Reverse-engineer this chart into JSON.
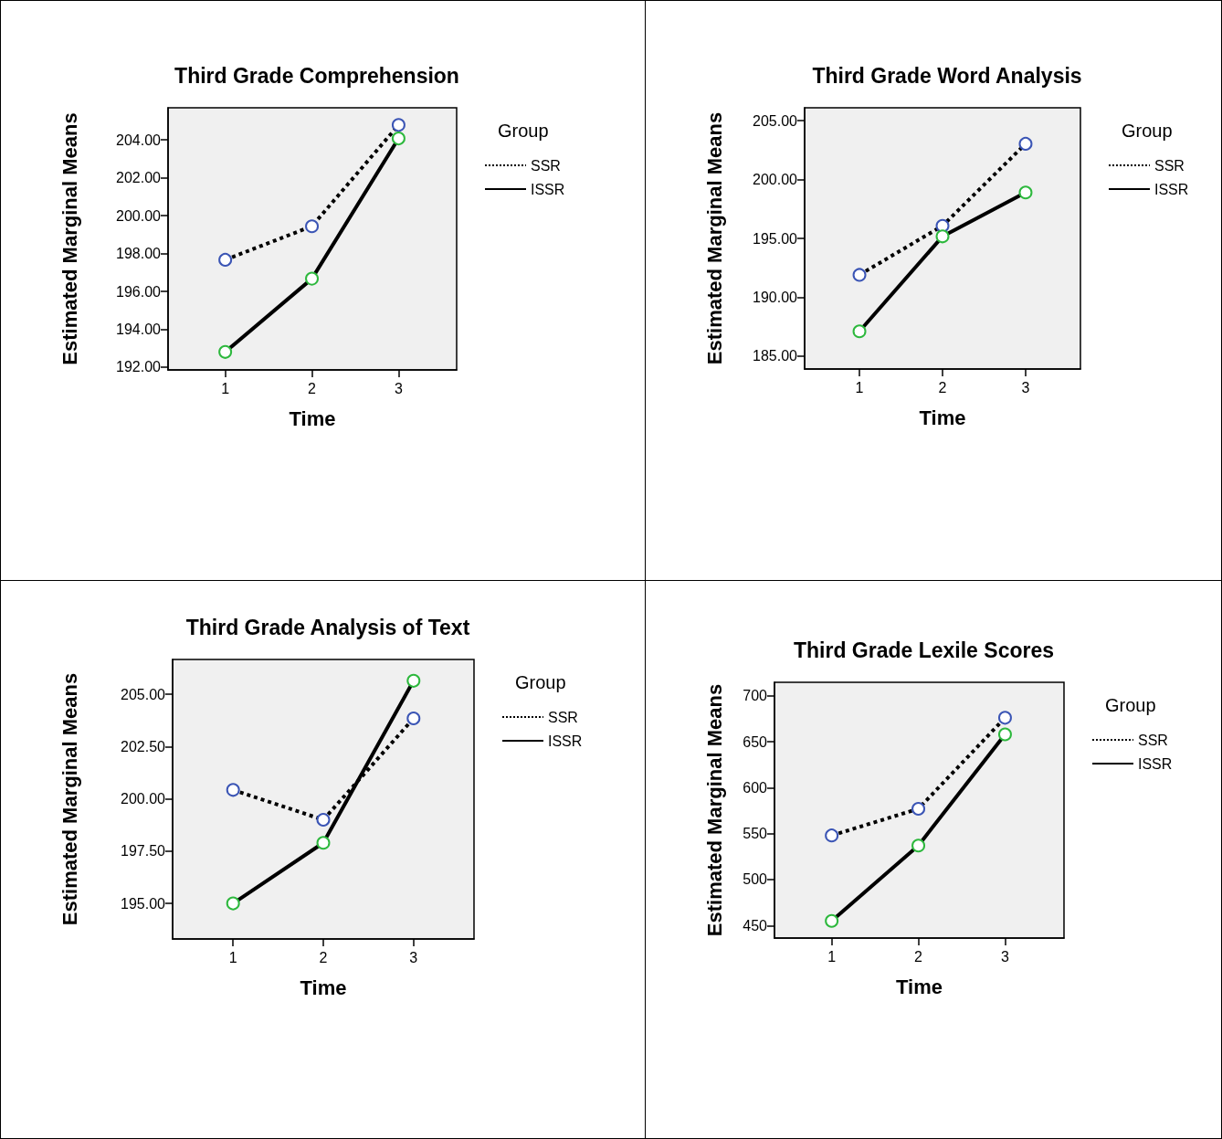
{
  "chart_data": [
    {
      "type": "line",
      "title": "Third Grade Comprehension",
      "xlabel": "Time",
      "ylabel": "Estimated Marginal Means",
      "legend_title": "Group",
      "x": [
        1,
        2,
        3
      ],
      "xlim": [
        0.34,
        3.67
      ],
      "xticks": [
        1,
        2,
        3
      ],
      "ylim": [
        191.85,
        205.7
      ],
      "yticks": [
        {
          "value": 192,
          "label": "192.00"
        },
        {
          "value": 194,
          "label": "194.00"
        },
        {
          "value": 196,
          "label": "196.00"
        },
        {
          "value": 198,
          "label": "198.00"
        },
        {
          "value": 200,
          "label": "200.00"
        },
        {
          "value": 202,
          "label": "202.00"
        },
        {
          "value": 204,
          "label": "204.00"
        }
      ],
      "grid": false,
      "legend": "right",
      "marker": "circle",
      "series": [
        {
          "name": "SSR",
          "color": "#000000",
          "colors": [
            "#3b55b5",
            "#3b55b5",
            "#3b55b5"
          ],
          "line_style": "dotted",
          "values": [
            197.67,
            199.44,
            204.79
          ]
        },
        {
          "name": "ISSR",
          "color": "#000000",
          "colors": [
            "#2db83d",
            "#2db83d",
            "#2db83d"
          ],
          "line_style": "solid",
          "values": [
            192.8,
            196.67,
            204.08
          ]
        }
      ]
    },
    {
      "type": "line",
      "title": "Third Grade Word Analysis",
      "xlabel": "Time",
      "ylabel": "Estimated Marginal Means",
      "legend_title": "Group",
      "x": [
        1,
        2,
        3
      ],
      "xlim": [
        0.34,
        3.66
      ],
      "xticks": [
        1,
        2,
        3
      ],
      "ylim": [
        183.9,
        206.1
      ],
      "yticks": [
        {
          "value": 185,
          "label": "185.00"
        },
        {
          "value": 190,
          "label": "190.00"
        },
        {
          "value": 195,
          "label": "195.00"
        },
        {
          "value": 200,
          "label": "200.00"
        },
        {
          "value": 205,
          "label": "205.00"
        }
      ],
      "grid": false,
      "legend": "right",
      "marker": "circle",
      "series": [
        {
          "name": "SSR",
          "color": "#000000",
          "colors": [
            "#3b55b5",
            "#3b55b5",
            "#3b55b5"
          ],
          "line_style": "dotted",
          "values": [
            191.9,
            196.07,
            203.04
          ]
        },
        {
          "name": "ISSR",
          "color": "#000000",
          "colors": [
            "#2db83d",
            "#2db83d",
            "#2db83d"
          ],
          "line_style": "solid",
          "values": [
            187.1,
            195.17,
            198.9
          ]
        }
      ]
    },
    {
      "type": "line",
      "title": "Third Grade Analysis of Text",
      "xlabel": "Time",
      "ylabel": "Estimated Marginal Means",
      "legend_title": "Group",
      "x": [
        1,
        2,
        3
      ],
      "xlim": [
        0.33,
        3.67
      ],
      "xticks": [
        1,
        2,
        3
      ],
      "ylim": [
        193.3,
        206.67
      ],
      "yticks": [
        {
          "value": 195,
          "label": "195.00"
        },
        {
          "value": 197.5,
          "label": "197.50"
        },
        {
          "value": 200,
          "label": "200.00"
        },
        {
          "value": 202.5,
          "label": "202.50"
        },
        {
          "value": 205,
          "label": "205.00"
        }
      ],
      "grid": false,
      "legend": "right",
      "marker": "circle",
      "series": [
        {
          "name": "SSR",
          "color": "#000000",
          "colors": [
            "#3b55b5",
            "#3b55b5",
            "#3b55b5"
          ],
          "line_style": "dotted",
          "values": [
            200.43,
            199.0,
            203.85
          ]
        },
        {
          "name": "ISSR",
          "color": "#000000",
          "colors": [
            "#2db83d",
            "#2db83d",
            "#2db83d"
          ],
          "line_style": "solid",
          "values": [
            195.0,
            197.9,
            205.65
          ]
        }
      ]
    },
    {
      "type": "line",
      "title": "Third Grade Lexile Scores",
      "xlabel": "Time",
      "ylabel": "Estimated Marginal Means",
      "legend_title": "Group",
      "x": [
        1,
        2,
        3
      ],
      "xlim": [
        0.34,
        3.68
      ],
      "xticks": [
        1,
        2,
        3
      ],
      "ylim": [
        436.4,
        714.6
      ],
      "yticks": [
        450,
        500,
        550,
        600,
        650,
        700
      ],
      "grid": false,
      "legend": "right",
      "marker": "circle",
      "series": [
        {
          "name": "SSR",
          "color": "#000000",
          "colors": [
            "#3b55b5",
            "#3b55b5",
            "#3b55b5"
          ],
          "line_style": "dotted",
          "values": [
            548,
            577,
            676
          ]
        },
        {
          "name": "ISSR",
          "color": "#000000",
          "colors": [
            "#2db83d",
            "#2db83d",
            "#2db83d"
          ],
          "line_style": "solid",
          "values": [
            455,
            537,
            658
          ]
        }
      ]
    }
  ]
}
